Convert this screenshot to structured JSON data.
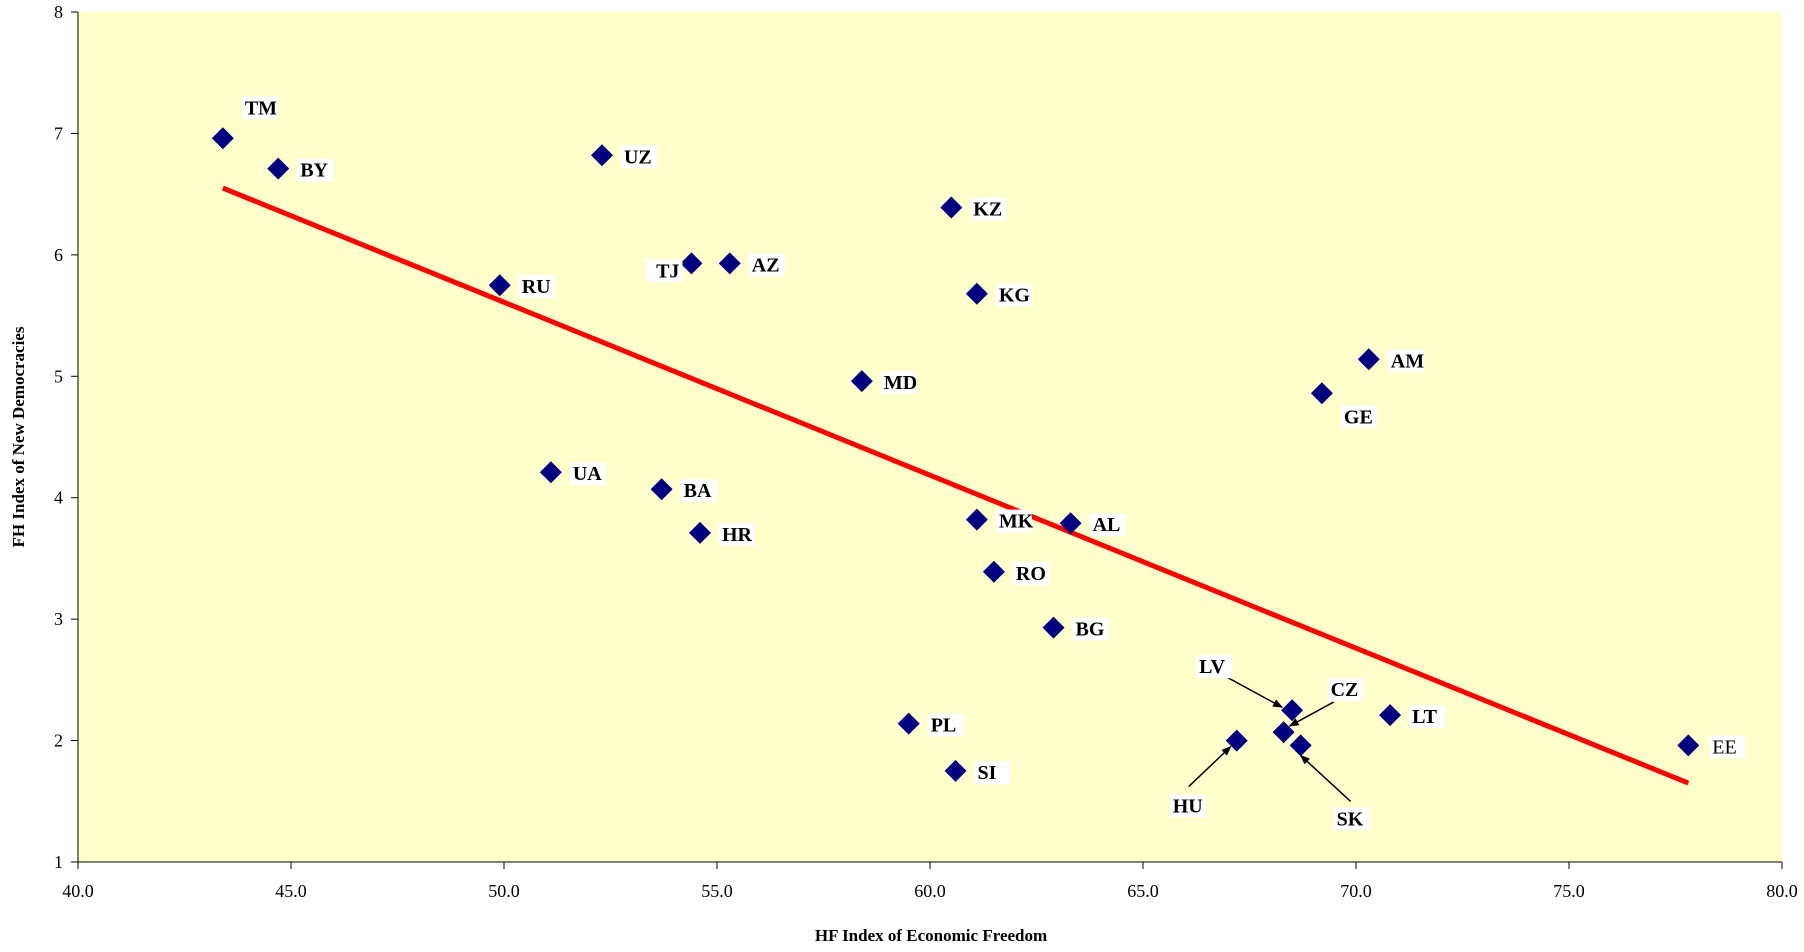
{
  "chart_data": {
    "type": "scatter",
    "title": "",
    "xlabel": "HF Index of Economic Freedom",
    "ylabel": "FH Index of New Democracies",
    "xlim": [
      40,
      80
    ],
    "ylim": [
      1,
      8
    ],
    "x_ticks": [
      "40.0",
      "45.0",
      "50.0",
      "55.0",
      "60.0",
      "65.0",
      "70.0",
      "75.0",
      "80.0"
    ],
    "y_ticks": [
      "1",
      "2",
      "3",
      "4",
      "5",
      "6",
      "7",
      "8"
    ],
    "grid": false,
    "plot_background": "#FFFFCC",
    "marker_color": "#000080",
    "trendline_color": "#FF0000",
    "points": [
      {
        "label": "TM",
        "x": 43.4,
        "y": 6.96
      },
      {
        "label": "BY",
        "x": 44.7,
        "y": 6.71
      },
      {
        "label": "UZ",
        "x": 52.3,
        "y": 6.82
      },
      {
        "label": "KZ",
        "x": 60.5,
        "y": 6.39
      },
      {
        "label": "TJ",
        "x": 54.4,
        "y": 5.93
      },
      {
        "label": "AZ",
        "x": 55.3,
        "y": 5.93
      },
      {
        "label": "RU",
        "x": 49.9,
        "y": 5.75
      },
      {
        "label": "KG",
        "x": 61.1,
        "y": 5.68
      },
      {
        "label": "AM",
        "x": 70.3,
        "y": 5.14
      },
      {
        "label": "GE",
        "x": 69.2,
        "y": 4.86
      },
      {
        "label": "MD",
        "x": 58.4,
        "y": 4.96
      },
      {
        "label": "UA",
        "x": 51.1,
        "y": 4.21
      },
      {
        "label": "BA",
        "x": 53.7,
        "y": 4.07
      },
      {
        "label": "HR",
        "x": 54.6,
        "y": 3.71
      },
      {
        "label": "MK",
        "x": 61.1,
        "y": 3.82
      },
      {
        "label": "AL",
        "x": 63.3,
        "y": 3.79
      },
      {
        "label": "RO",
        "x": 61.5,
        "y": 3.39
      },
      {
        "label": "BG",
        "x": 62.9,
        "y": 2.93
      },
      {
        "label": "LV",
        "x": 68.5,
        "y": 2.25
      },
      {
        "label": "CZ",
        "x": 68.3,
        "y": 2.07
      },
      {
        "label": "LT",
        "x": 70.8,
        "y": 2.21
      },
      {
        "label": "PL",
        "x": 59.5,
        "y": 2.14
      },
      {
        "label": "HU",
        "x": 67.2,
        "y": 2.0
      },
      {
        "label": "SK",
        "x": 68.7,
        "y": 1.96
      },
      {
        "label": "SI",
        "x": 60.6,
        "y": 1.75
      },
      {
        "label": "EE",
        "x": 77.8,
        "y": 1.96
      }
    ],
    "trendline": {
      "x": [
        43.4,
        77.8
      ],
      "y": [
        6.55,
        1.65
      ]
    }
  }
}
